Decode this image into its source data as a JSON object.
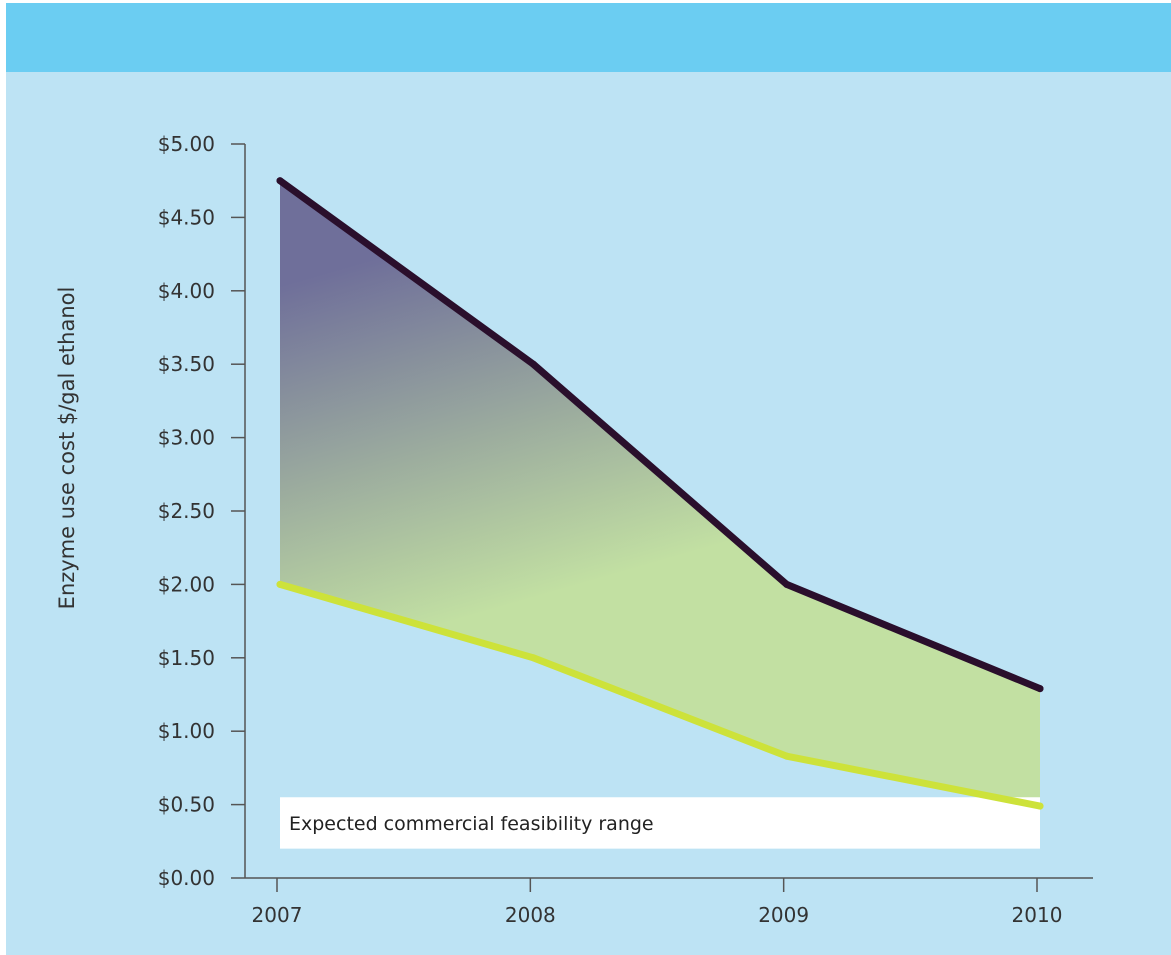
{
  "chart_data": {
    "type": "area",
    "title": "",
    "xlabel": "",
    "ylabel": "Enzyme use cost $/gal ethanol",
    "x": [
      "2007",
      "2008",
      "2009",
      "2010"
    ],
    "series": [
      {
        "values": [
          4.75,
          3.5,
          2.0,
          1.29
        ],
        "color": "#2a0f2c"
      },
      {
        "values": [
          2.0,
          1.5,
          0.83,
          0.49
        ],
        "color": "#cde23a"
      }
    ],
    "ylim": [
      0,
      5
    ],
    "yticks": [
      0,
      0.5,
      1,
      1.5,
      2,
      2.5,
      3,
      3.5,
      4,
      4.5,
      5
    ],
    "ytick_labels": [
      "$0.00",
      "$0.50",
      "$1.00",
      "$1.50",
      "$2.00",
      "$2.50",
      "$3.00",
      "$3.50",
      "$4.00",
      "$4.50",
      "$5.00"
    ],
    "band": {
      "range": [
        0.2,
        0.55
      ],
      "label": "Expected commercial feasibility range"
    },
    "fill_colors": {
      "top": "#6f6f9a",
      "bottom": "#c2e0a2"
    },
    "grid": false,
    "legend": "none"
  }
}
